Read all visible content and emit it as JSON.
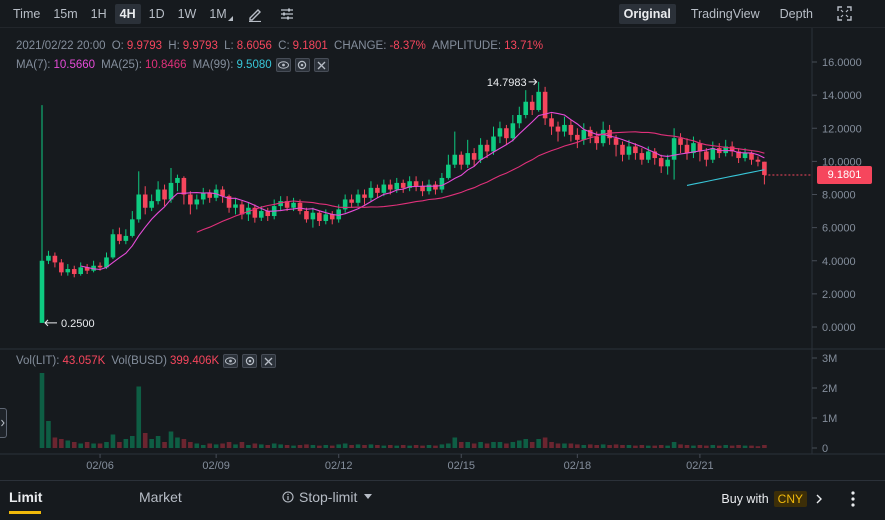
{
  "toolbar": {
    "intervals": [
      {
        "label": "Time",
        "active": false
      },
      {
        "label": "15m",
        "active": false
      },
      {
        "label": "1H",
        "active": false
      },
      {
        "label": "4H",
        "active": true
      },
      {
        "label": "1D",
        "active": false
      },
      {
        "label": "1W",
        "active": false
      },
      {
        "label": "1M",
        "active": false
      }
    ],
    "views": [
      {
        "label": "Original",
        "active": true
      },
      {
        "label": "TradingView",
        "active": false
      },
      {
        "label": "Depth",
        "active": false
      }
    ],
    "icons": [
      "pencil-icon",
      "settings-sliders-icon",
      "fullscreen-icon"
    ]
  },
  "ohlc": {
    "datetime": "2021/02/22 20:00",
    "open_label": "O:",
    "open": "9.9793",
    "high_label": "H:",
    "high": "9.9793",
    "low_label": "L:",
    "low": "8.6056",
    "close_label": "C:",
    "close": "9.1801",
    "change_label": "CHANGE:",
    "change": "-8.37%",
    "amplitude_label": "AMPLITUDE:",
    "amplitude": "13.71%"
  },
  "ma": {
    "ma7_label": "MA(7):",
    "ma7": "10.5660",
    "ma25_label": "MA(25):",
    "ma25": "10.8466",
    "ma99_label": "MA(99):",
    "ma99": "9.5080",
    "colors": {
      "ma7": "#e64bd8",
      "ma25": "#e0307a",
      "ma99": "#38c6d8"
    }
  },
  "volume": {
    "vol_label": "Vol(LIT):",
    "vol": "43.057K",
    "volq_label": "Vol(BUSD)",
    "volq": "399.406K"
  },
  "colors": {
    "up": "#0ecb81",
    "down": "#f6465d",
    "accent": "#f0b90b"
  },
  "chart_data": {
    "type": "candlestick",
    "price_axis": {
      "ticks": [
        "16.0000",
        "14.0000",
        "12.0000",
        "10.0000",
        "8.0000",
        "6.0000",
        "4.0000",
        "2.0000",
        "0.0000"
      ],
      "ylim": [
        0,
        16
      ]
    },
    "volume_axis": {
      "ticks": [
        "3M",
        "2M",
        "1M",
        "0"
      ]
    },
    "x_ticks": [
      "02/06",
      "02/09",
      "02/12",
      "02/15",
      "02/18",
      "02/21"
    ],
    "current_price": "9.1801",
    "annotations": {
      "high_label": "14.7983",
      "low_label": "0.2500"
    },
    "candles": [
      [
        0.25,
        4.0,
        13.4,
        0.25
      ],
      [
        4.0,
        4.3,
        4.6,
        3.8
      ],
      [
        4.3,
        3.9,
        4.5,
        3.6
      ],
      [
        3.9,
        3.3,
        4.1,
        3.1
      ],
      [
        3.3,
        3.5,
        3.8,
        3.1
      ],
      [
        3.5,
        3.2,
        3.7,
        3.0
      ],
      [
        3.2,
        3.6,
        3.9,
        3.1
      ],
      [
        3.6,
        3.4,
        3.8,
        3.2
      ],
      [
        3.4,
        3.7,
        4.0,
        3.3
      ],
      [
        3.7,
        3.6,
        3.9,
        3.4
      ],
      [
        3.6,
        4.2,
        4.5,
        3.5
      ],
      [
        4.2,
        5.6,
        5.9,
        4.1
      ],
      [
        5.6,
        5.2,
        6.0,
        5.0
      ],
      [
        5.2,
        5.5,
        5.9,
        5.0
      ],
      [
        5.5,
        6.5,
        7.0,
        5.4
      ],
      [
        6.5,
        8.0,
        9.4,
        6.3
      ],
      [
        8.0,
        7.2,
        8.5,
        6.8
      ],
      [
        7.2,
        7.6,
        8.0,
        7.0
      ],
      [
        7.6,
        8.3,
        8.8,
        7.4
      ],
      [
        8.3,
        7.7,
        8.6,
        7.3
      ],
      [
        7.7,
        8.7,
        9.6,
        7.5
      ],
      [
        8.7,
        9.0,
        9.2,
        8.2
      ],
      [
        9.0,
        8.0,
        9.1,
        7.4
      ],
      [
        8.0,
        7.4,
        8.2,
        6.8
      ],
      [
        7.4,
        7.7,
        8.0,
        7.1
      ],
      [
        7.7,
        8.1,
        8.4,
        7.4
      ],
      [
        8.1,
        7.8,
        8.3,
        7.5
      ],
      [
        7.8,
        8.3,
        8.6,
        7.6
      ],
      [
        8.3,
        7.9,
        8.5,
        7.5
      ],
      [
        7.9,
        7.2,
        8.0,
        6.9
      ],
      [
        7.2,
        7.4,
        7.8,
        6.8
      ],
      [
        7.4,
        6.8,
        7.6,
        6.5
      ],
      [
        6.8,
        7.2,
        7.5,
        6.4
      ],
      [
        7.2,
        6.6,
        7.4,
        6.3
      ],
      [
        6.6,
        7.0,
        7.3,
        6.4
      ],
      [
        7.0,
        6.7,
        7.2,
        6.4
      ],
      [
        6.7,
        7.3,
        7.7,
        6.5
      ],
      [
        7.3,
        7.6,
        7.9,
        7.0
      ],
      [
        7.6,
        7.2,
        7.9,
        7.0
      ],
      [
        7.2,
        7.5,
        7.8,
        7.0
      ],
      [
        7.5,
        7.0,
        7.7,
        6.8
      ],
      [
        7.0,
        6.5,
        7.2,
        6.3
      ],
      [
        6.5,
        6.9,
        7.2,
        6.0
      ],
      [
        6.9,
        6.4,
        7.0,
        6.1
      ],
      [
        6.4,
        6.8,
        7.1,
        6.2
      ],
      [
        6.8,
        6.5,
        7.0,
        6.2
      ],
      [
        6.5,
        7.1,
        7.4,
        6.3
      ],
      [
        7.1,
        7.7,
        8.0,
        6.9
      ],
      [
        7.7,
        7.5,
        8.0,
        7.2
      ],
      [
        7.5,
        8.0,
        8.3,
        7.3
      ],
      [
        8.0,
        7.8,
        8.3,
        7.4
      ],
      [
        7.8,
        8.4,
        8.8,
        7.6
      ],
      [
        8.4,
        8.1,
        8.6,
        7.8
      ],
      [
        8.1,
        8.6,
        8.9,
        7.9
      ],
      [
        8.6,
        8.3,
        8.9,
        8.0
      ],
      [
        8.3,
        8.7,
        9.0,
        8.1
      ],
      [
        8.7,
        8.4,
        8.9,
        8.1
      ],
      [
        8.4,
        8.8,
        9.1,
        8.2
      ],
      [
        8.8,
        8.5,
        9.1,
        8.2
      ],
      [
        8.5,
        8.2,
        8.8,
        7.9
      ],
      [
        8.2,
        8.6,
        8.9,
        8.0
      ],
      [
        8.6,
        8.3,
        8.8,
        8.0
      ],
      [
        8.3,
        9.0,
        9.3,
        8.1
      ],
      [
        9.0,
        9.8,
        10.4,
        8.9
      ],
      [
        9.8,
        10.4,
        11.8,
        9.6
      ],
      [
        10.4,
        9.8,
        10.6,
        9.5
      ],
      [
        9.8,
        10.5,
        11.3,
        9.6
      ],
      [
        10.5,
        10.1,
        10.8,
        9.7
      ],
      [
        10.1,
        11.0,
        11.4,
        9.9
      ],
      [
        11.0,
        10.6,
        11.3,
        10.2
      ],
      [
        10.6,
        11.5,
        12.1,
        10.4
      ],
      [
        11.5,
        12.0,
        12.4,
        11.1
      ],
      [
        12.0,
        11.4,
        12.2,
        11.0
      ],
      [
        11.4,
        12.3,
        12.8,
        11.2
      ],
      [
        12.3,
        12.8,
        13.3,
        12.0
      ],
      [
        12.8,
        13.6,
        14.3,
        12.6
      ],
      [
        13.6,
        13.1,
        14.0,
        12.8
      ],
      [
        13.1,
        14.2,
        14.8,
        13.0
      ],
      [
        14.2,
        12.6,
        14.5,
        12.2
      ],
      [
        12.6,
        12.1,
        12.9,
        11.6
      ],
      [
        12.1,
        11.8,
        12.4,
        11.2
      ],
      [
        11.8,
        12.2,
        12.7,
        11.5
      ],
      [
        12.2,
        11.6,
        12.5,
        11.2
      ],
      [
        11.6,
        11.3,
        12.0,
        10.8
      ],
      [
        11.3,
        11.9,
        12.3,
        11.0
      ],
      [
        11.9,
        11.5,
        12.1,
        11.1
      ],
      [
        11.5,
        11.1,
        11.8,
        10.7
      ],
      [
        11.1,
        11.9,
        12.4,
        10.9
      ],
      [
        11.9,
        11.4,
        12.2,
        11.0
      ],
      [
        11.4,
        11.0,
        11.6,
        10.3
      ],
      [
        11.0,
        10.4,
        11.2,
        10.0
      ],
      [
        10.4,
        10.9,
        11.3,
        10.1
      ],
      [
        10.9,
        10.5,
        11.1,
        10.1
      ],
      [
        10.5,
        10.1,
        10.8,
        9.8
      ],
      [
        10.1,
        10.6,
        10.9,
        9.9
      ],
      [
        10.6,
        10.2,
        10.8,
        9.8
      ],
      [
        10.2,
        9.7,
        10.4,
        9.3
      ],
      [
        9.7,
        10.1,
        10.4,
        9.2
      ],
      [
        10.1,
        11.4,
        12.0,
        8.9
      ],
      [
        11.4,
        11.0,
        11.7,
        10.5
      ],
      [
        11.0,
        10.5,
        11.4,
        10.1
      ],
      [
        10.5,
        11.1,
        11.5,
        10.2
      ],
      [
        11.1,
        10.6,
        11.3,
        10.0
      ],
      [
        10.6,
        10.1,
        10.8,
        9.7
      ],
      [
        10.1,
        10.8,
        11.2,
        9.9
      ],
      [
        10.8,
        10.5,
        11.1,
        10.2
      ],
      [
        10.5,
        10.9,
        11.3,
        10.3
      ],
      [
        10.9,
        10.6,
        11.2,
        10.3
      ],
      [
        10.6,
        10.2,
        10.8,
        9.9
      ],
      [
        10.2,
        10.5,
        10.8,
        10.0
      ],
      [
        10.5,
        10.1,
        10.6,
        9.8
      ],
      [
        10.1,
        9.98,
        10.3,
        9.7
      ],
      [
        9.98,
        9.18,
        9.98,
        8.61
      ]
    ],
    "volumes": [
      2.5,
      0.9,
      0.35,
      0.3,
      0.25,
      0.2,
      0.15,
      0.2,
      0.15,
      0.15,
      0.2,
      0.45,
      0.2,
      0.3,
      0.4,
      2.05,
      0.5,
      0.3,
      0.4,
      0.2,
      0.55,
      0.35,
      0.3,
      0.2,
      0.15,
      0.1,
      0.15,
      0.12,
      0.15,
      0.2,
      0.12,
      0.2,
      0.1,
      0.15,
      0.12,
      0.1,
      0.15,
      0.12,
      0.1,
      0.08,
      0.1,
      0.12,
      0.1,
      0.08,
      0.1,
      0.08,
      0.12,
      0.15,
      0.1,
      0.12,
      0.1,
      0.12,
      0.1,
      0.08,
      0.1,
      0.08,
      0.1,
      0.08,
      0.1,
      0.08,
      0.1,
      0.08,
      0.12,
      0.15,
      0.35,
      0.2,
      0.2,
      0.15,
      0.2,
      0.15,
      0.2,
      0.2,
      0.15,
      0.2,
      0.25,
      0.3,
      0.2,
      0.3,
      0.35,
      0.2,
      0.15,
      0.15,
      0.15,
      0.12,
      0.1,
      0.12,
      0.1,
      0.12,
      0.1,
      0.12,
      0.1,
      0.1,
      0.08,
      0.1,
      0.08,
      0.08,
      0.1,
      0.08,
      0.2,
      0.12,
      0.1,
      0.08,
      0.1,
      0.08,
      0.1,
      0.08,
      0.1,
      0.08,
      0.1,
      0.08,
      0.08,
      0.06,
      0.1
    ]
  },
  "bottom_tabs": {
    "limit": "Limit",
    "market": "Market",
    "stop_limit": "Stop-limit",
    "buy_with": "Buy with",
    "currency": "CNY"
  }
}
